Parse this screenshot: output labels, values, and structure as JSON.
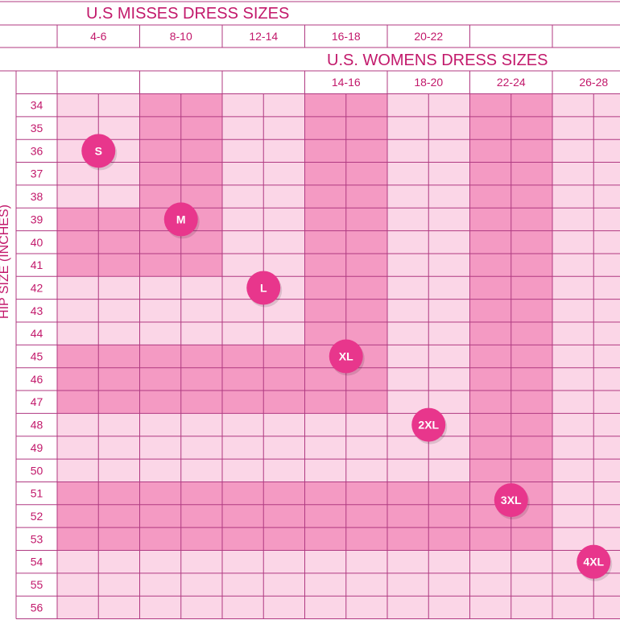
{
  "chart_data": {
    "type": "table",
    "title_misses": "U.S MISSES DRESS SIZES",
    "title_womens": "U.S. WOMENS DRESS SIZES",
    "ylabel": "HIP SIZE (INCHES)",
    "misses_sizes": [
      "4-6",
      "8-10",
      "12-14",
      "16-18",
      "20-22",
      "",
      ""
    ],
    "womens_sizes": [
      "",
      "",
      "",
      "14-16",
      "18-20",
      "22-24",
      "26-28"
    ],
    "hip_sizes": [
      34,
      35,
      36,
      37,
      38,
      39,
      40,
      41,
      42,
      43,
      44,
      45,
      46,
      47,
      48,
      49,
      50,
      51,
      52,
      53,
      54,
      55,
      56
    ],
    "size_bands": [
      {
        "label": "S",
        "hip_from": 34,
        "hip_to": 38,
        "column_index": 0
      },
      {
        "label": "M",
        "hip_from": 39,
        "hip_to": 41,
        "column_index": 1
      },
      {
        "label": "L",
        "hip_from": 42,
        "hip_to": 44,
        "column_index": 2
      },
      {
        "label": "XL",
        "hip_from": 45,
        "hip_to": 47,
        "column_index": 3
      },
      {
        "label": "2XL",
        "hip_from": 48,
        "hip_to": 50,
        "column_index": 4
      },
      {
        "label": "3XL",
        "hip_from": 51,
        "hip_to": 53,
        "column_index": 5
      },
      {
        "label": "4XL",
        "hip_from": 54,
        "hip_to": 56,
        "column_index": 6
      }
    ],
    "badge_positions": [
      {
        "label": "S",
        "hip": 36.5,
        "column_index": 0
      },
      {
        "label": "M",
        "hip": 39.5,
        "column_index": 1
      },
      {
        "label": "L",
        "hip": 42.5,
        "column_index": 2
      },
      {
        "label": "XL",
        "hip": 45.5,
        "column_index": 3
      },
      {
        "label": "2XL",
        "hip": 48.5,
        "column_index": 4
      },
      {
        "label": "3XL",
        "hip": 51.8,
        "column_index": 5
      },
      {
        "label": "4XL",
        "hip": 54.5,
        "column_index": 6
      }
    ],
    "colors": {
      "accent": "#c2196b",
      "light_fill": "#fbd6e7",
      "dark_fill": "#f49ac3",
      "badge": "#e8368c",
      "grid_line": "#b03a82"
    }
  }
}
